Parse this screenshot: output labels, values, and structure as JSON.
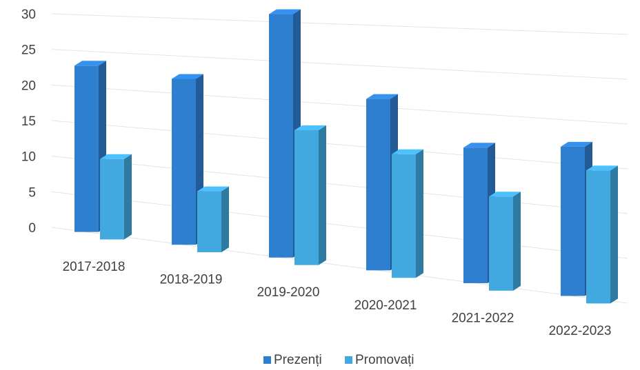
{
  "chart_data": {
    "type": "bar",
    "categories": [
      "2017-2018",
      "2018-2019",
      "2019-2020",
      "2020-2021",
      "2021-2022",
      "2022-2023"
    ],
    "series": [
      {
        "name": "Prezenți",
        "values": [
          23,
          22,
          31,
          21,
          16,
          17
        ],
        "color": "#2f7fd0"
      },
      {
        "name": "Promovați",
        "values": [
          11,
          8,
          17,
          15,
          11,
          15
        ],
        "color": "#41a9e0"
      }
    ],
    "y_ticks": [
      "0",
      "5",
      "10",
      "15",
      "20",
      "25",
      "30"
    ],
    "ylim": [
      0,
      30
    ],
    "grid": true,
    "three_d": true,
    "legend_position": "bottom"
  }
}
